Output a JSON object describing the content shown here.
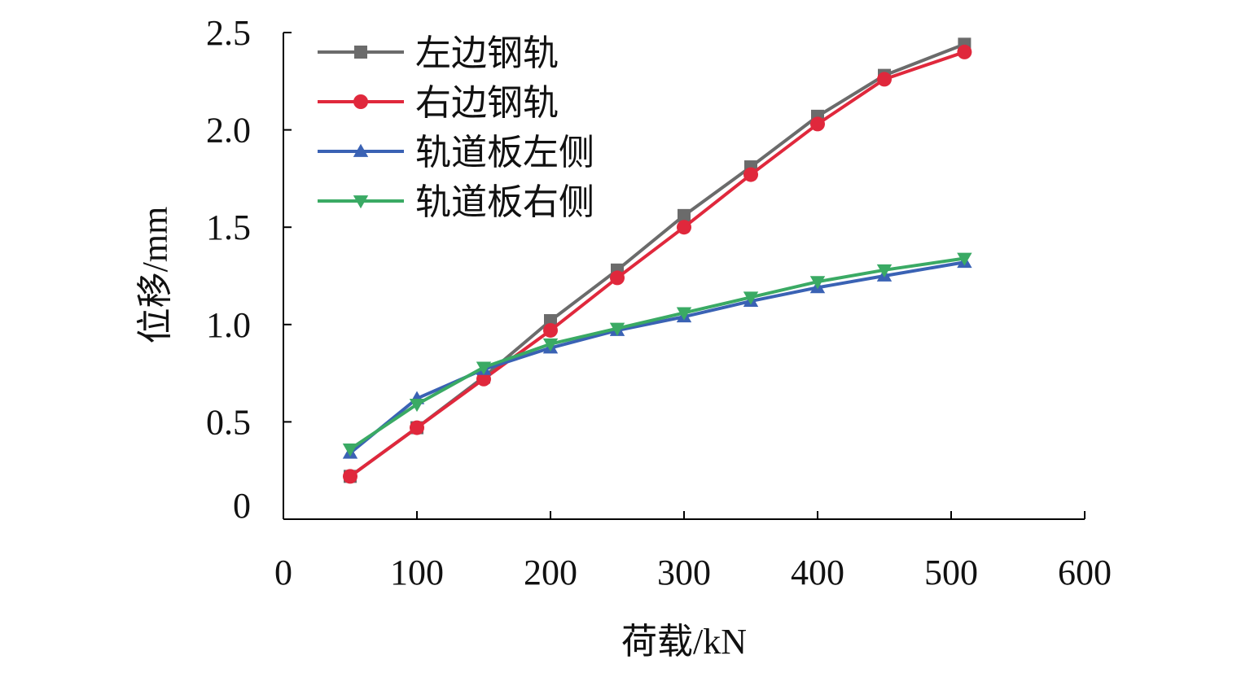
{
  "chart_data": {
    "type": "line",
    "xlabel": "荷载/kN",
    "ylabel": "位移/mm",
    "xlim": [
      0,
      600
    ],
    "ylim": [
      0,
      2.5
    ],
    "x_ticks": [
      "0",
      "100",
      "200",
      "300",
      "400",
      "500",
      "600"
    ],
    "y_ticks": [
      "0",
      "0.5",
      "1.0",
      "1.5",
      "2.0",
      "2.5"
    ],
    "grid": false,
    "legend_position": "top-left",
    "series": [
      {
        "name": "左边钢轨",
        "color": "#6b6b6b",
        "marker": "square",
        "x": [
          50,
          100,
          150,
          200,
          250,
          300,
          350,
          400,
          450,
          510
        ],
        "y": [
          0.22,
          0.47,
          0.73,
          1.02,
          1.28,
          1.56,
          1.81,
          2.07,
          2.28,
          2.44
        ]
      },
      {
        "name": "右边钢轨",
        "color": "#e0283c",
        "marker": "circle",
        "x": [
          50,
          100,
          150,
          200,
          250,
          300,
          350,
          400,
          450,
          510
        ],
        "y": [
          0.22,
          0.47,
          0.72,
          0.97,
          1.24,
          1.5,
          1.77,
          2.03,
          2.26,
          2.4
        ]
      },
      {
        "name": "轨道板左侧",
        "color": "#3a62b4",
        "marker": "triangle-up",
        "x": [
          50,
          100,
          150,
          200,
          250,
          300,
          350,
          400,
          450,
          510
        ],
        "y": [
          0.34,
          0.62,
          0.77,
          0.88,
          0.97,
          1.04,
          1.12,
          1.19,
          1.25,
          1.32
        ]
      },
      {
        "name": "轨道板右侧",
        "color": "#3aaa64",
        "marker": "triangle-down",
        "x": [
          50,
          100,
          150,
          200,
          250,
          300,
          350,
          400,
          450,
          510
        ],
        "y": [
          0.36,
          0.59,
          0.78,
          0.9,
          0.98,
          1.06,
          1.14,
          1.22,
          1.28,
          1.34
        ]
      }
    ]
  }
}
